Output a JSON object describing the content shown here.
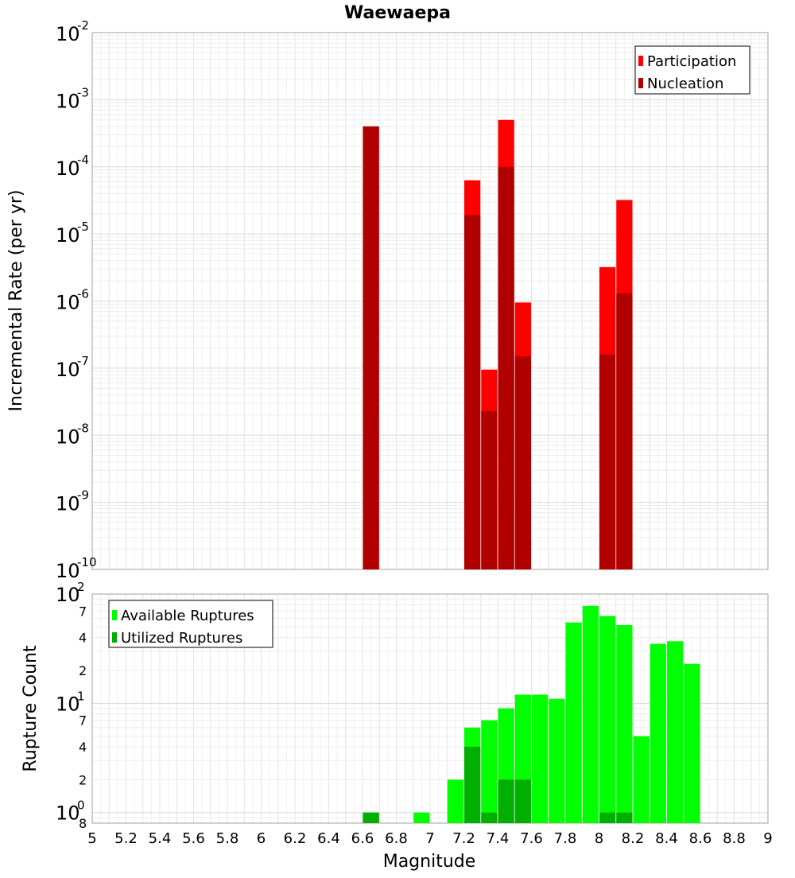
{
  "chart_data": [
    {
      "type": "bar",
      "title": "Waewaepa",
      "xlabel": "",
      "ylabel": "Incremental Rate (per yr)",
      "y_scale": "log",
      "ylim": [
        1e-10,
        0.01
      ],
      "xlim": [
        5,
        9
      ],
      "legend_position": "top-right",
      "grid": true,
      "bar_width": 0.095,
      "y_ticks": [
        {
          "exp": "-2",
          "value": 0.01
        },
        {
          "exp": "-3",
          "value": 0.001
        },
        {
          "exp": "-4",
          "value": 0.0001
        },
        {
          "exp": "-5",
          "value": 1e-05
        },
        {
          "exp": "-6",
          "value": 1e-06
        },
        {
          "exp": "-7",
          "value": 1e-07
        },
        {
          "exp": "-8",
          "value": 1e-08
        },
        {
          "exp": "-9",
          "value": 1e-09
        },
        {
          "exp": "-10",
          "value": 1e-10
        }
      ],
      "series": [
        {
          "name": "Participation",
          "color": "#ff0000",
          "points": [
            {
              "x": 6.65,
              "y": 0.0004
            },
            {
              "x": 7.25,
              "y": 6.3e-05
            },
            {
              "x": 7.35,
              "y": 9.5e-08
            },
            {
              "x": 7.45,
              "y": 0.0005
            },
            {
              "x": 7.55,
              "y": 9.5e-07
            },
            {
              "x": 8.05,
              "y": 3.2e-06
            },
            {
              "x": 8.15,
              "y": 3.2e-05
            }
          ]
        },
        {
          "name": "Nucleation",
          "color": "#b00000",
          "points": [
            {
              "x": 6.65,
              "y": 0.0004
            },
            {
              "x": 7.25,
              "y": 1.9e-05
            },
            {
              "x": 7.35,
              "y": 2.3e-08
            },
            {
              "x": 7.45,
              "y": 0.0001
            },
            {
              "x": 7.55,
              "y": 1.5e-07
            },
            {
              "x": 8.05,
              "y": 1.6e-07
            },
            {
              "x": 8.15,
              "y": 1.3e-06
            }
          ]
        }
      ]
    },
    {
      "type": "bar",
      "title": "",
      "xlabel": "Magnitude",
      "ylabel": "Rupture Count",
      "y_scale": "log",
      "ylim": [
        0.8,
        100
      ],
      "xlim": [
        5,
        9
      ],
      "legend_position": "top-left",
      "grid": true,
      "bar_width": 0.095,
      "x_ticks": [
        "5",
        "5.2",
        "5.4",
        "5.6",
        "5.8",
        "6",
        "6.2",
        "6.4",
        "6.6",
        "6.8",
        "7",
        "7.2",
        "7.4",
        "7.6",
        "7.8",
        "8",
        "8.2",
        "8.4",
        "8.6",
        "8.8",
        "9"
      ],
      "y_major_ticks": [
        {
          "base": "10",
          "exp": "2",
          "value": 100
        },
        {
          "base": "10",
          "exp": "1",
          "value": 10
        },
        {
          "base": "10",
          "exp": "0",
          "value": 1
        }
      ],
      "y_minor_ticks": [
        {
          "label": "7",
          "value": 70
        },
        {
          "label": "4",
          "value": 40
        },
        {
          "label": "2",
          "value": 20
        },
        {
          "label": "7",
          "value": 7
        },
        {
          "label": "4",
          "value": 4
        },
        {
          "label": "2",
          "value": 2
        },
        {
          "label": "8",
          "value": 0.8
        }
      ],
      "series": [
        {
          "name": "Available Ruptures",
          "color": "#00ff00",
          "points": [
            {
              "x": 6.65,
              "y": 1
            },
            {
              "x": 6.95,
              "y": 1
            },
            {
              "x": 7.15,
              "y": 2
            },
            {
              "x": 7.25,
              "y": 6
            },
            {
              "x": 7.35,
              "y": 7
            },
            {
              "x": 7.45,
              "y": 9
            },
            {
              "x": 7.55,
              "y": 12
            },
            {
              "x": 7.65,
              "y": 12
            },
            {
              "x": 7.75,
              "y": 11
            },
            {
              "x": 7.85,
              "y": 55
            },
            {
              "x": 7.95,
              "y": 78
            },
            {
              "x": 8.05,
              "y": 63
            },
            {
              "x": 8.15,
              "y": 52
            },
            {
              "x": 8.25,
              "y": 5
            },
            {
              "x": 8.35,
              "y": 35
            },
            {
              "x": 8.45,
              "y": 37
            },
            {
              "x": 8.55,
              "y": 23
            }
          ]
        },
        {
          "name": "Utilized Ruptures",
          "color": "#00b000",
          "points": [
            {
              "x": 6.65,
              "y": 1
            },
            {
              "x": 7.25,
              "y": 4
            },
            {
              "x": 7.35,
              "y": 1
            },
            {
              "x": 7.45,
              "y": 2
            },
            {
              "x": 7.55,
              "y": 2
            },
            {
              "x": 8.05,
              "y": 1
            },
            {
              "x": 8.15,
              "y": 1
            }
          ]
        }
      ]
    }
  ]
}
